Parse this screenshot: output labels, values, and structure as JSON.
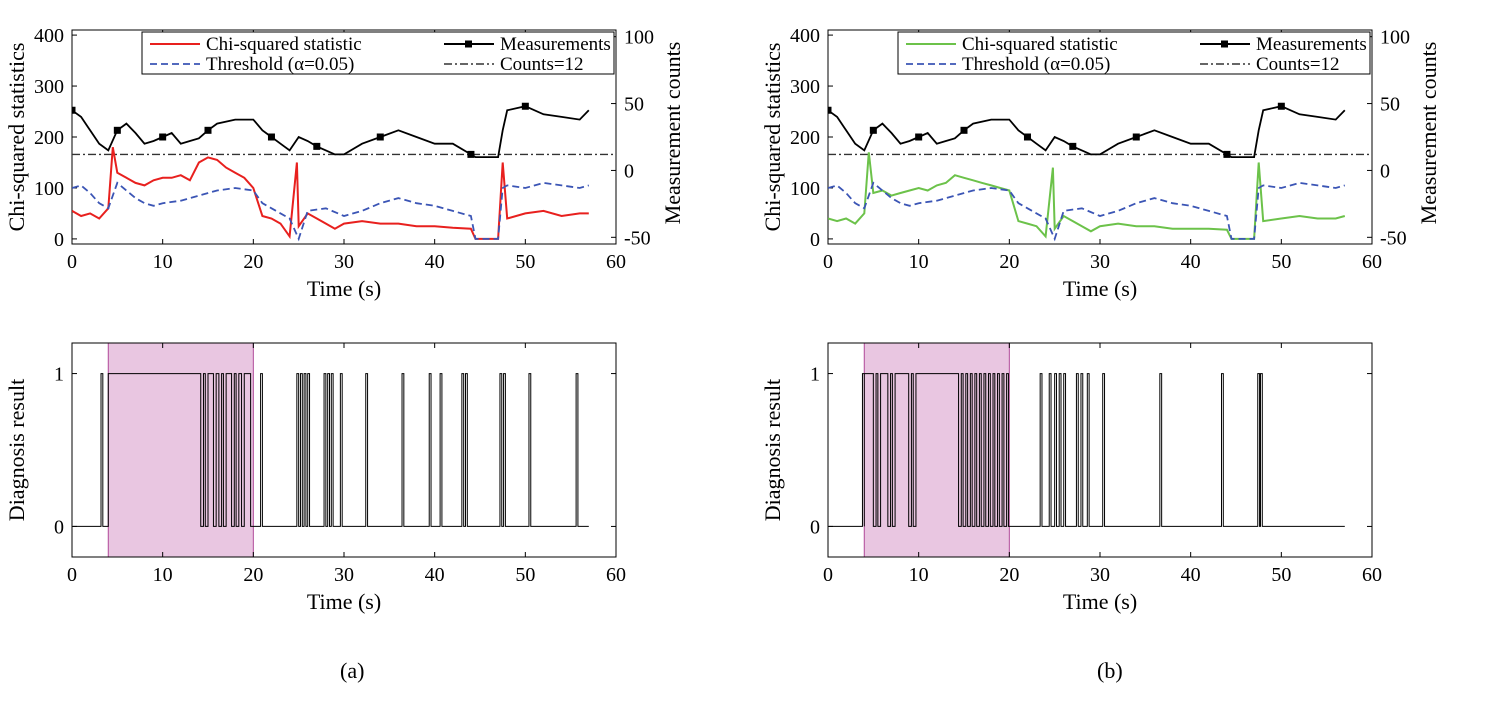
{
  "figure": {
    "panel_labels": [
      "(a)",
      "(b)"
    ]
  },
  "colors": {
    "chi_a": "#e8201e",
    "chi_b": "#6cc24a",
    "threshold": "#3b55b5",
    "measurements": "#000000",
    "counts_line": "#333333",
    "fault_region": "#e9c6e1"
  },
  "chart_data": [
    {
      "panel": "(a)",
      "type": "line",
      "xlabel": "Time (s)",
      "ylabel": "Chi-squared statistics",
      "y2label": "Measurement counts",
      "xlim": [
        0,
        60
      ],
      "ylim": [
        -10,
        410
      ],
      "y2lim": [
        -55,
        105
      ],
      "xticks": [
        0,
        10,
        20,
        30,
        40,
        50,
        60
      ],
      "yticks": [
        0,
        100,
        200,
        300,
        400
      ],
      "y2ticks": [
        -50,
        0,
        50,
        100
      ],
      "legend": {
        "position": "top-right",
        "entries": [
          "Chi-squared statistic",
          "Threshold (α=0.05)",
          "Measurements",
          "Counts=12"
        ]
      },
      "series": [
        {
          "name": "Chi-squared statistic",
          "axis": "left",
          "style": "solid",
          "color_key": "chi_a",
          "x": [
            0,
            1,
            2,
            3,
            4,
            4.5,
            5,
            6,
            7,
            8,
            9,
            10,
            11,
            12,
            13,
            14,
            15,
            16,
            17,
            18,
            19,
            20,
            21,
            22,
            23,
            24,
            24.8,
            25,
            26,
            27,
            28,
            29,
            30,
            32,
            34,
            36,
            38,
            40,
            42,
            44,
            44.5,
            47,
            47.5,
            48,
            50,
            52,
            54,
            56,
            57
          ],
          "y": [
            55,
            45,
            50,
            40,
            60,
            180,
            130,
            120,
            110,
            105,
            115,
            120,
            120,
            125,
            115,
            150,
            160,
            155,
            140,
            130,
            120,
            100,
            45,
            40,
            30,
            5,
            150,
            25,
            50,
            40,
            30,
            20,
            30,
            35,
            30,
            30,
            25,
            25,
            22,
            20,
            0,
            0,
            150,
            40,
            50,
            55,
            45,
            50,
            50
          ]
        },
        {
          "name": "Threshold (α=0.05)",
          "axis": "left",
          "style": "dashed",
          "color_key": "threshold",
          "x": [
            0,
            1,
            2,
            3,
            4,
            5,
            6,
            7,
            8,
            9,
            10,
            12,
            14,
            16,
            18,
            20,
            21,
            22,
            24,
            25,
            26,
            28,
            30,
            32,
            34,
            36,
            38,
            40,
            42,
            44,
            44.5,
            47,
            47.5,
            48,
            50,
            52,
            54,
            56,
            57
          ],
          "y": [
            100,
            105,
            90,
            70,
            60,
            110,
            95,
            80,
            70,
            65,
            70,
            75,
            85,
            95,
            100,
            95,
            70,
            60,
            40,
            0,
            55,
            60,
            45,
            55,
            70,
            80,
            70,
            65,
            55,
            45,
            0,
            0,
            100,
            105,
            100,
            110,
            105,
            100,
            105
          ]
        },
        {
          "name": "Measurements",
          "axis": "right",
          "style": "solid-marker",
          "color_key": "measurements",
          "x": [
            0,
            1,
            2,
            3,
            4,
            5,
            6,
            7,
            8,
            9,
            10,
            11,
            12,
            13,
            14,
            15,
            16,
            18,
            20,
            21,
            22,
            23,
            24,
            25,
            26,
            27,
            28,
            29,
            30,
            32,
            34,
            36,
            38,
            40,
            42,
            44,
            44.5,
            47,
            47.5,
            48,
            50,
            52,
            54,
            56,
            57
          ],
          "y": [
            45,
            40,
            30,
            20,
            15,
            30,
            35,
            28,
            20,
            22,
            25,
            28,
            20,
            22,
            24,
            30,
            35,
            38,
            38,
            30,
            25,
            20,
            15,
            25,
            22,
            18,
            15,
            12,
            12,
            20,
            25,
            30,
            25,
            20,
            20,
            12,
            10,
            10,
            30,
            45,
            48,
            42,
            40,
            38,
            45
          ]
        }
      ],
      "hline": {
        "name": "Counts=12",
        "axis": "right",
        "value": 12,
        "color_key": "counts_line"
      }
    },
    {
      "panel": "(a)",
      "type": "line",
      "xlabel": "Time (s)",
      "ylabel": "Diagnosis result",
      "xlim": [
        0,
        60
      ],
      "ylim": [
        -0.2,
        1.2
      ],
      "xticks": [
        0,
        10,
        20,
        30,
        40,
        50,
        60
      ],
      "yticks": [
        0,
        1
      ],
      "shaded_region": [
        4,
        20
      ],
      "pulses": [
        [
          3.2,
          3.4
        ],
        [
          4,
          14.2
        ],
        [
          14.5,
          14.7
        ],
        [
          15,
          15.6
        ],
        [
          15.9,
          16.2
        ],
        [
          16.5,
          16.7
        ],
        [
          17,
          17.6
        ],
        [
          17.9,
          18.1
        ],
        [
          18.4,
          18.7
        ],
        [
          19,
          19.7
        ],
        [
          20.8,
          21
        ],
        [
          24.8,
          25
        ],
        [
          25.2,
          25.4
        ],
        [
          25.6,
          25.8
        ],
        [
          26,
          26.2
        ],
        [
          27.8,
          28
        ],
        [
          28.2,
          28.4
        ],
        [
          28.6,
          28.8
        ],
        [
          29.6,
          29.8
        ],
        [
          32.4,
          32.6
        ],
        [
          36.4,
          36.6
        ],
        [
          39.4,
          39.6
        ],
        [
          40.6,
          40.8
        ],
        [
          43,
          43.2
        ],
        [
          43.4,
          43.6
        ],
        [
          47.2,
          47.4
        ],
        [
          47.6,
          47.8
        ],
        [
          50.4,
          50.6
        ],
        [
          55.6,
          55.8
        ]
      ]
    },
    {
      "panel": "(b)",
      "type": "line",
      "xlabel": "Time (s)",
      "ylabel": "Chi-squared statistics",
      "y2label": "Measurement counts",
      "xlim": [
        0,
        60
      ],
      "ylim": [
        -10,
        410
      ],
      "y2lim": [
        -55,
        105
      ],
      "xticks": [
        0,
        10,
        20,
        30,
        40,
        50,
        60
      ],
      "yticks": [
        0,
        100,
        200,
        300,
        400
      ],
      "y2ticks": [
        -50,
        0,
        50,
        100
      ],
      "legend": {
        "position": "top-right",
        "entries": [
          "Chi-squared statistic",
          "Threshold (α=0.05)",
          "Measurements",
          "Counts=12"
        ]
      },
      "series": [
        {
          "name": "Chi-squared statistic",
          "axis": "left",
          "style": "solid",
          "color_key": "chi_b",
          "x": [
            0,
            1,
            2,
            3,
            4,
            4.5,
            5,
            6,
            7,
            8,
            9,
            10,
            11,
            12,
            13,
            14,
            15,
            16,
            17,
            18,
            19,
            20,
            21,
            22,
            23,
            24,
            24.8,
            25,
            26,
            27,
            28,
            29,
            30,
            32,
            34,
            36,
            38,
            40,
            42,
            44,
            44.5,
            47,
            47.5,
            48,
            50,
            52,
            54,
            56,
            57
          ],
          "y": [
            40,
            35,
            40,
            30,
            50,
            170,
            90,
            95,
            85,
            90,
            95,
            100,
            95,
            105,
            110,
            125,
            120,
            115,
            110,
            105,
            100,
            95,
            35,
            30,
            25,
            5,
            140,
            20,
            45,
            35,
            25,
            15,
            25,
            30,
            25,
            25,
            20,
            20,
            20,
            18,
            0,
            0,
            150,
            35,
            40,
            45,
            40,
            40,
            45
          ]
        },
        {
          "name": "Threshold (α=0.05)",
          "axis": "left",
          "style": "dashed",
          "color_key": "threshold",
          "x": [
            0,
            1,
            2,
            3,
            4,
            5,
            6,
            7,
            8,
            9,
            10,
            12,
            14,
            16,
            18,
            20,
            21,
            22,
            24,
            25,
            26,
            28,
            30,
            32,
            34,
            36,
            38,
            40,
            42,
            44,
            44.5,
            47,
            47.5,
            48,
            50,
            52,
            54,
            56,
            57
          ],
          "y": [
            100,
            105,
            90,
            70,
            60,
            110,
            95,
            80,
            70,
            65,
            70,
            75,
            85,
            95,
            100,
            95,
            70,
            60,
            40,
            0,
            55,
            60,
            45,
            55,
            70,
            80,
            70,
            65,
            55,
            45,
            0,
            0,
            100,
            105,
            100,
            110,
            105,
            100,
            105
          ]
        },
        {
          "name": "Measurements",
          "axis": "right",
          "style": "solid-marker",
          "color_key": "measurements",
          "x": [
            0,
            1,
            2,
            3,
            4,
            5,
            6,
            7,
            8,
            9,
            10,
            11,
            12,
            13,
            14,
            15,
            16,
            18,
            20,
            21,
            22,
            23,
            24,
            25,
            26,
            27,
            28,
            29,
            30,
            32,
            34,
            36,
            38,
            40,
            42,
            44,
            44.5,
            47,
            47.5,
            48,
            50,
            52,
            54,
            56,
            57
          ],
          "y": [
            45,
            40,
            30,
            20,
            15,
            30,
            35,
            28,
            20,
            22,
            25,
            28,
            20,
            22,
            24,
            30,
            35,
            38,
            38,
            30,
            25,
            20,
            15,
            25,
            22,
            18,
            15,
            12,
            12,
            20,
            25,
            30,
            25,
            20,
            20,
            12,
            10,
            10,
            30,
            45,
            48,
            42,
            40,
            38,
            45
          ]
        }
      ],
      "hline": {
        "name": "Counts=12",
        "axis": "right",
        "value": 12,
        "color_key": "counts_line"
      }
    },
    {
      "panel": "(b)",
      "type": "line",
      "xlabel": "Time (s)",
      "ylabel": "Diagnosis result",
      "xlim": [
        0,
        60
      ],
      "ylim": [
        -0.2,
        1.2
      ],
      "xticks": [
        0,
        10,
        20,
        30,
        40,
        50,
        60
      ],
      "yticks": [
        0,
        1
      ],
      "shaded_region": [
        4,
        20
      ],
      "pulses": [
        [
          3.8,
          4
        ],
        [
          4,
          5
        ],
        [
          5.3,
          5.5
        ],
        [
          5.8,
          6.6
        ],
        [
          6.9,
          7.1
        ],
        [
          7.4,
          8.9
        ],
        [
          9.2,
          9.4
        ],
        [
          9.7,
          14.4
        ],
        [
          14.7,
          14.9
        ],
        [
          15.2,
          15.4
        ],
        [
          15.7,
          15.9
        ],
        [
          16.2,
          16.4
        ],
        [
          16.7,
          16.9
        ],
        [
          17.2,
          17.4
        ],
        [
          17.7,
          17.9
        ],
        [
          18.2,
          18.4
        ],
        [
          18.7,
          18.9
        ],
        [
          19.2,
          19.4
        ],
        [
          19.7,
          19.9
        ],
        [
          23.4,
          23.6
        ],
        [
          24.4,
          24.6
        ],
        [
          25,
          25.2
        ],
        [
          25.5,
          25.7
        ],
        [
          26,
          26.2
        ],
        [
          27.4,
          27.6
        ],
        [
          27.9,
          28.1
        ],
        [
          28.6,
          28.8
        ],
        [
          30.3,
          30.5
        ],
        [
          36.6,
          36.8
        ],
        [
          43.4,
          43.6
        ],
        [
          47.4,
          47.6
        ],
        [
          47.7,
          47.9
        ]
      ]
    }
  ]
}
